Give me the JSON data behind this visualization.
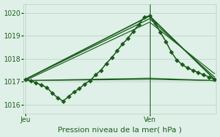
{
  "title": "Pression niveau de la mer( hPa )",
  "ylabel_ticks": [
    1016,
    1017,
    1018,
    1019,
    1020
  ],
  "ylim": [
    1015.6,
    1020.4
  ],
  "xlim": [
    -0.3,
    35.3
  ],
  "background_color": "#dff0e8",
  "grid_color": "#b0d0b8",
  "line_color": "#1a5c1a",
  "xtick_labels": [
    "Jeu",
    "Ven"
  ],
  "xtick_positions": [
    0,
    23
  ],
  "vline_x": 23,
  "squiggly": {
    "x": [
      0,
      1,
      2,
      3,
      4,
      5,
      6,
      7,
      8,
      9,
      10,
      11,
      12,
      13,
      14,
      15,
      16,
      17,
      18,
      19,
      20,
      21,
      22,
      23,
      24,
      25,
      26,
      27,
      28,
      29,
      30,
      31,
      32,
      33,
      34,
      35
    ],
    "y": [
      1017.1,
      1017.05,
      1016.95,
      1016.85,
      1016.75,
      1016.5,
      1016.3,
      1016.15,
      1016.35,
      1016.55,
      1016.7,
      1016.9,
      1017.05,
      1017.3,
      1017.5,
      1017.8,
      1018.05,
      1018.35,
      1018.65,
      1018.9,
      1019.2,
      1019.5,
      1019.82,
      1019.87,
      1019.55,
      1019.15,
      1018.75,
      1018.3,
      1017.95,
      1017.75,
      1017.6,
      1017.5,
      1017.4,
      1017.3,
      1017.2,
      1017.1
    ]
  },
  "straight_lines": [
    {
      "x": [
        0,
        23,
        35
      ],
      "y": [
        1017.1,
        1019.87,
        1017.1
      ],
      "lw": 1.3
    },
    {
      "x": [
        0,
        23,
        35
      ],
      "y": [
        1017.1,
        1019.75,
        1017.2
      ],
      "lw": 1.0
    },
    {
      "x": [
        0,
        23,
        35
      ],
      "y": [
        1017.05,
        1019.6,
        1017.35
      ],
      "lw": 0.9
    },
    {
      "x": [
        0,
        23,
        35
      ],
      "y": [
        1017.05,
        1017.15,
        1017.05
      ],
      "lw": 1.0
    },
    {
      "x": [
        0,
        23,
        35
      ],
      "y": [
        1017.05,
        1017.1,
        1017.05
      ],
      "lw": 0.8
    }
  ],
  "marker_style": "D",
  "markersize": 3.0,
  "linewidth": 1.2,
  "fontsize_ticks": 7,
  "fontsize_xlabel": 8
}
